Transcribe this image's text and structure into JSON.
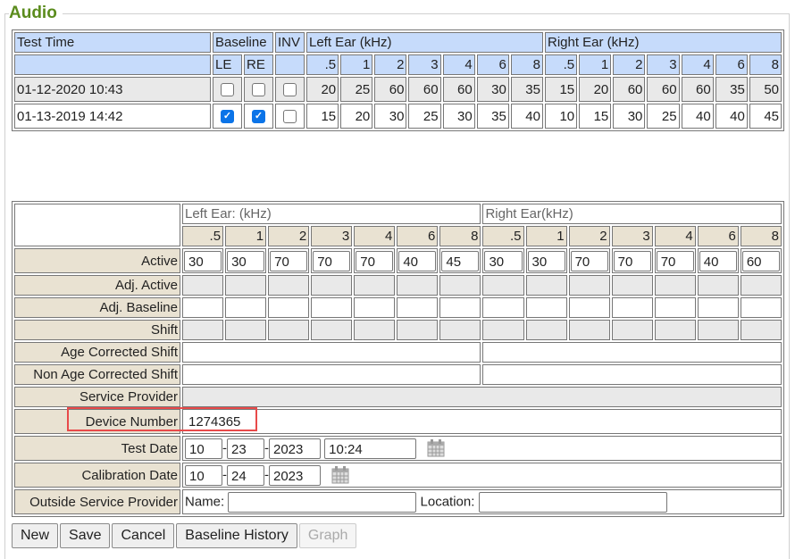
{
  "section_title": "Audio",
  "history": {
    "headers": {
      "test_time": "Test Time",
      "baseline": "Baseline",
      "inv": "INV",
      "left_ear": "Left Ear (kHz)",
      "right_ear": "Right Ear (kHz)",
      "le": "LE",
      "re": "RE"
    },
    "freqs": [
      ".5",
      "1",
      "2",
      "3",
      "4",
      "6",
      "8"
    ],
    "rows": [
      {
        "time": "01-12-2020 10:43",
        "le": false,
        "re": false,
        "inv": false,
        "left": [
          "20",
          "25",
          "60",
          "60",
          "60",
          "30",
          "35"
        ],
        "right": [
          "15",
          "20",
          "60",
          "60",
          "60",
          "35",
          "50"
        ]
      },
      {
        "time": "01-13-2019 14:42",
        "le": true,
        "re": true,
        "inv": false,
        "left": [
          "15",
          "20",
          "30",
          "25",
          "30",
          "35",
          "40"
        ],
        "right": [
          "10",
          "15",
          "30",
          "25",
          "40",
          "40",
          "45"
        ]
      }
    ]
  },
  "form": {
    "left_ear": "Left Ear: (kHz)",
    "right_ear": "Right Ear(kHz)",
    "freqs": [
      ".5",
      "1",
      "2",
      "3",
      "4",
      "6",
      "8"
    ],
    "active_label": "Active",
    "active_left": [
      "30",
      "30",
      "70",
      "70",
      "70",
      "40",
      "45"
    ],
    "active_right": [
      "30",
      "30",
      "70",
      "70",
      "70",
      "40",
      "60"
    ],
    "adj_active_label": "Adj. Active",
    "adj_baseline_label": "Adj. Baseline",
    "shift_label": "Shift",
    "age_corrected_label": "Age Corrected Shift",
    "non_age_corrected_label": "Non Age Corrected Shift",
    "service_provider_label": "Service Provider",
    "device_number_label": "Device Number",
    "device_number": "1274365",
    "test_date_label": "Test Date",
    "test_date": {
      "month": "10",
      "day": "23",
      "year": "2023",
      "time": "10:24"
    },
    "calibration_date_label": "Calibration Date",
    "calibration_date": {
      "month": "10",
      "day": "24",
      "year": "2023"
    },
    "outside_provider_label": "Outside Service Provider",
    "name_label": "Name:",
    "name_value": "",
    "location_label": "Location:",
    "location_value": "",
    "date_sep": "-"
  },
  "buttons": {
    "new": "New",
    "save": "Save",
    "cancel": "Cancel",
    "baseline_history": "Baseline History",
    "graph": "Graph"
  },
  "colors": {
    "title": "#5b8c1d",
    "header_blue": "#c6dbfb",
    "label_beige": "#e9e2d2",
    "highlight": "#e84a4a"
  }
}
